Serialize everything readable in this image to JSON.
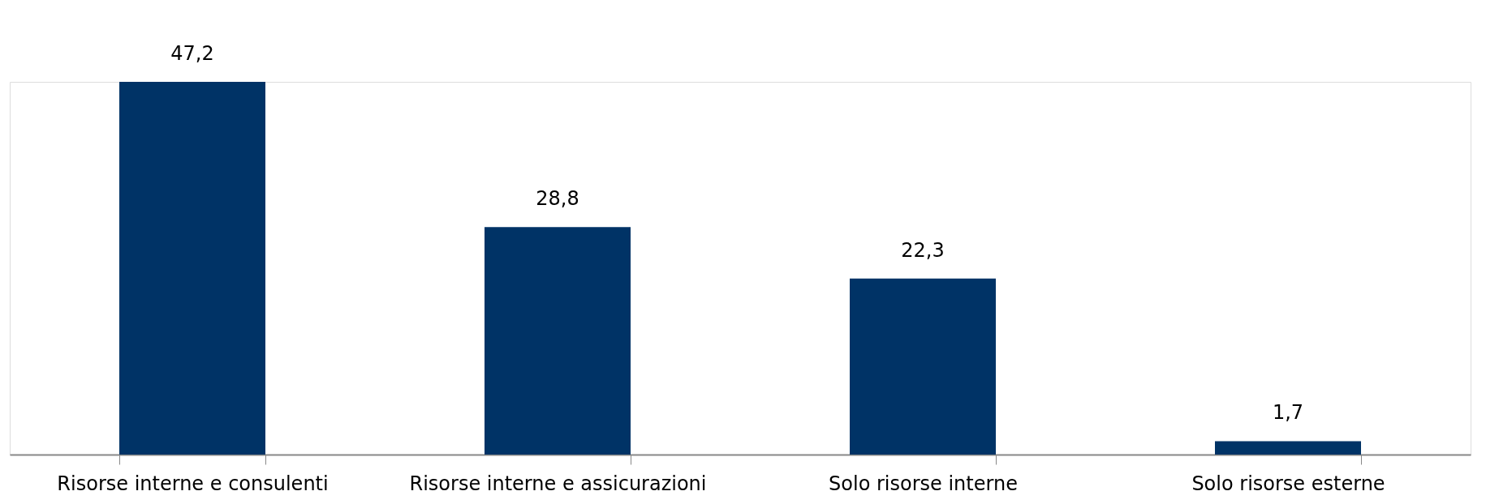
{
  "chart_data": {
    "type": "bar",
    "categories": [
      "Risorse interne e consulenti",
      "Risorse interne e assicurazioni",
      "Solo risorse interne",
      "Solo risorse esterne"
    ],
    "values": [
      47.2,
      28.8,
      22.3,
      1.7
    ],
    "value_labels": [
      "47,2",
      "28,8",
      "22,3",
      "1,7"
    ],
    "color": "#003366",
    "grid": false
  }
}
